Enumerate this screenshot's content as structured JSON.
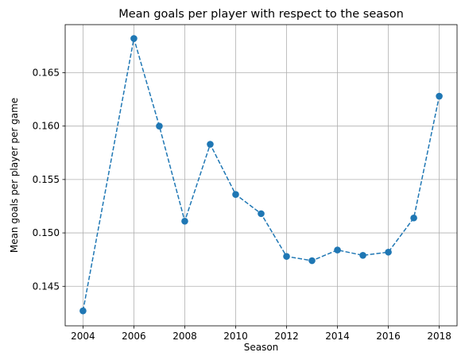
{
  "chart_data": {
    "type": "line",
    "title": "Mean goals per player with respect to the season",
    "xlabel": "Season",
    "ylabel": "Mean goals per player per game",
    "xlim": [
      2003.3,
      2018.7
    ],
    "ylim": [
      0.1413,
      0.1695
    ],
    "xticks": [
      2004,
      2006,
      2008,
      2010,
      2012,
      2014,
      2016,
      2018
    ],
    "yticks": [
      0.145,
      0.15,
      0.155,
      0.16,
      0.165
    ],
    "xtick_labels": [
      "2004",
      "2006",
      "2008",
      "2010",
      "2012",
      "2014",
      "2016",
      "2018"
    ],
    "ytick_labels": [
      "0.145",
      "0.150",
      "0.155",
      "0.160",
      "0.165"
    ],
    "grid": true,
    "line_style": "dashed",
    "marker": "circle",
    "color": "#1f77b4",
    "series": [
      {
        "x": [
          2004,
          2006,
          2007,
          2008,
          2009,
          2010,
          2011,
          2012,
          2013,
          2014,
          2015,
          2016,
          2017,
          2018
        ],
        "y": [
          0.1427,
          0.1682,
          0.16,
          0.1511,
          0.1583,
          0.1536,
          0.1518,
          0.1478,
          0.1474,
          0.1484,
          0.1479,
          0.1482,
          0.1514,
          0.1628
        ]
      }
    ]
  }
}
